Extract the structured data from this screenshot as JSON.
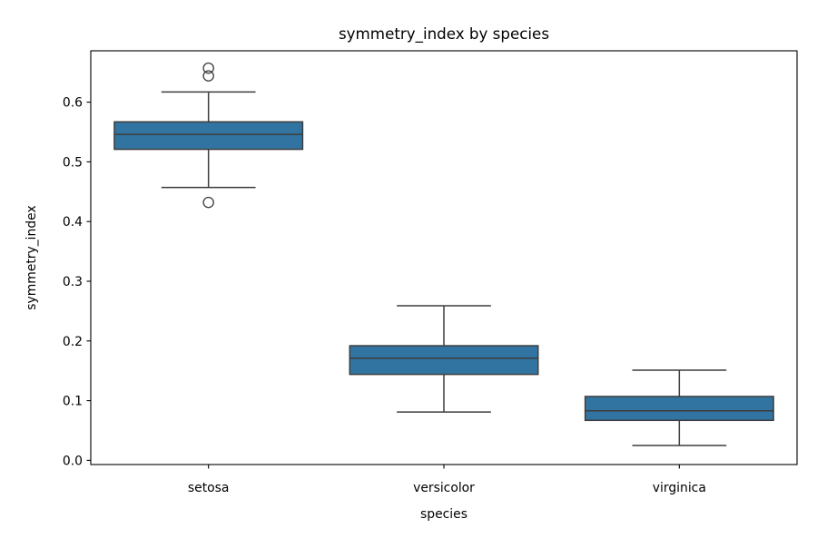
{
  "chart_data": {
    "type": "box",
    "title": "symmetry_index by species",
    "xlabel": "species",
    "ylabel": "symmetry_index",
    "ylim": [
      -0.007,
      0.686
    ],
    "yticks": [
      "0.0",
      "0.1",
      "0.2",
      "0.3",
      "0.4",
      "0.5",
      "0.6"
    ],
    "grid": false,
    "legend": "none",
    "colors": {
      "box_fill": "#3274a1",
      "box_edge": "#3d3d3d",
      "axes": "#000000"
    },
    "categories": [
      "setosa",
      "versicolor",
      "virginica"
    ],
    "boxes": [
      {
        "category": "setosa",
        "whisker_low": 0.457,
        "q1": 0.521,
        "median": 0.546,
        "q3": 0.567,
        "whisker_high": 0.617,
        "outliers": [
          0.657,
          0.644,
          0.432
        ]
      },
      {
        "category": "versicolor",
        "whisker_low": 0.081,
        "q1": 0.144,
        "median": 0.171,
        "q3": 0.192,
        "whisker_high": 0.259,
        "outliers": []
      },
      {
        "category": "virginica",
        "whisker_low": 0.025,
        "q1": 0.067,
        "median": 0.083,
        "q3": 0.107,
        "whisker_high": 0.151,
        "outliers": []
      }
    ]
  }
}
